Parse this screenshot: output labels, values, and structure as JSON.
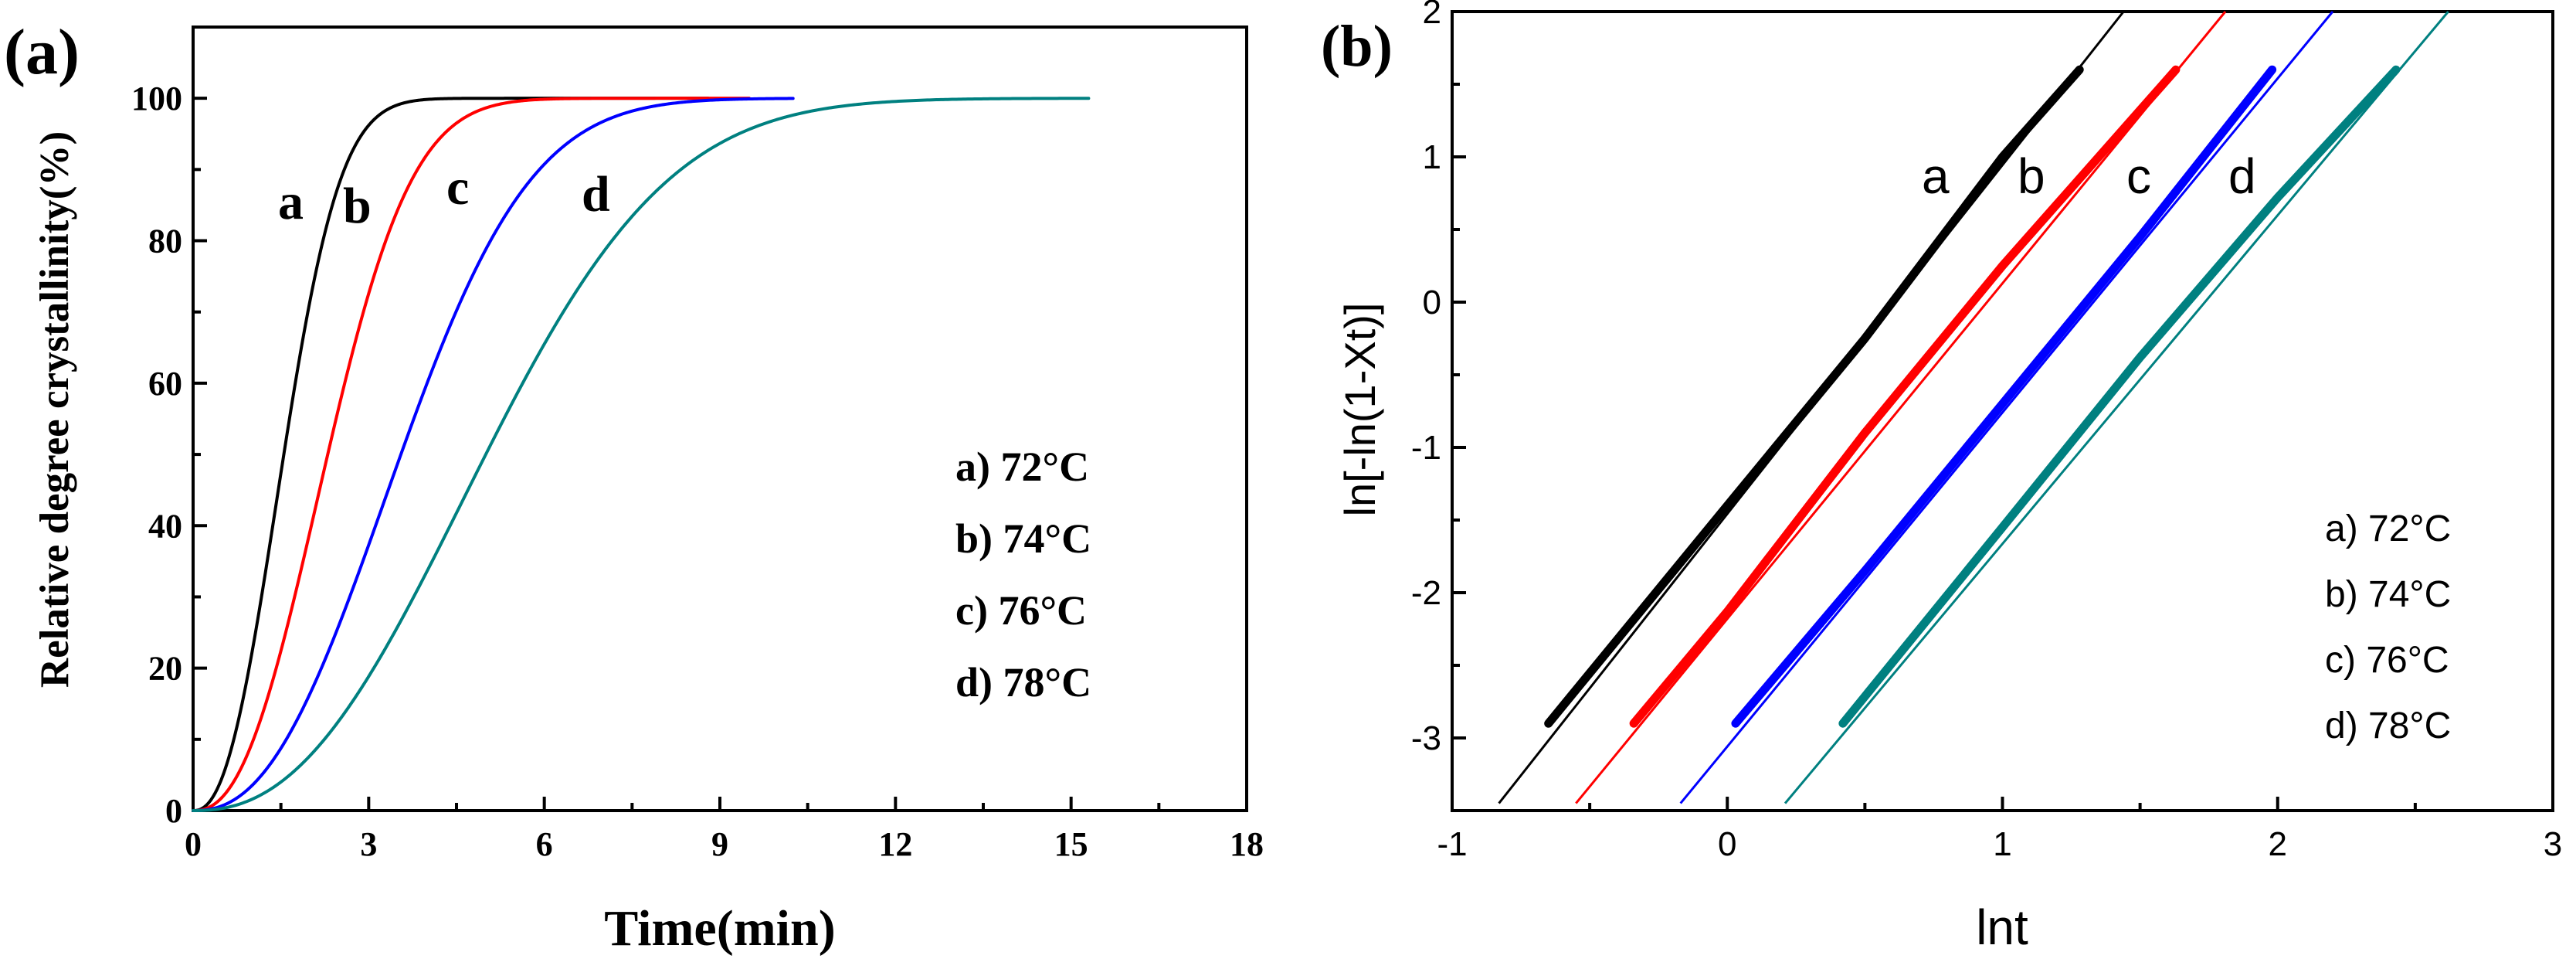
{
  "chart_data": [
    {
      "panel": "(a)",
      "type": "line",
      "title": "",
      "xlabel": "Time(min)",
      "ylabel": "Relative degree crystallinity(%)",
      "xlim": [
        0,
        18
      ],
      "ylim": [
        0,
        110
      ],
      "xticks": [
        "0",
        "3",
        "6",
        "9",
        "12",
        "15",
        "18"
      ],
      "yticks": [
        "0",
        "20",
        "40",
        "60",
        "80",
        "100"
      ],
      "series": [
        {
          "name": "a",
          "label": "a)  72°C",
          "color": "#000000",
          "model": {
            "n": 2.35,
            "half_time": 1.55,
            "t_end": 8.8
          },
          "points": [
            [
              0,
              0
            ],
            [
              0.5,
              2
            ],
            [
              1.0,
              17
            ],
            [
              1.5,
              48
            ],
            [
              2.0,
              77
            ],
            [
              2.5,
              93
            ],
            [
              3.0,
              99
            ],
            [
              3.5,
              100
            ],
            [
              8.8,
              100
            ]
          ]
        },
        {
          "name": "b",
          "label": "b)  74°C",
          "color": "#ff0000",
          "model": {
            "n": 2.35,
            "half_time": 2.3,
            "t_end": 9.5
          },
          "points": [
            [
              0,
              0
            ],
            [
              0.5,
              1
            ],
            [
              1.0,
              9
            ],
            [
              2.0,
              40
            ],
            [
              2.5,
              57
            ],
            [
              3.0,
              75
            ],
            [
              3.5,
              88
            ],
            [
              4.0,
              95
            ],
            [
              5.0,
              99
            ],
            [
              6.0,
              100
            ],
            [
              9.5,
              100
            ]
          ]
        },
        {
          "name": "c",
          "label": "c)  76°C",
          "color": "#0000ff",
          "model": {
            "n": 2.35,
            "half_time": 3.55,
            "t_end": 10.25
          },
          "points": [
            [
              0,
              0
            ],
            [
              1.0,
              3
            ],
            [
              2.0,
              20
            ],
            [
              3.0,
              38
            ],
            [
              4.0,
              60
            ],
            [
              5.0,
              78
            ],
            [
              6.0,
              90
            ],
            [
              7.0,
              96
            ],
            [
              8.0,
              99
            ],
            [
              10.25,
              100
            ]
          ]
        },
        {
          "name": "d",
          "label": "d)  78°C",
          "color": "#008080",
          "model": {
            "n": 2.35,
            "half_time": 5.0,
            "t_end": 15.3
          },
          "points": [
            [
              0,
              0
            ],
            [
              1.0,
              4
            ],
            [
              2.0,
              13
            ],
            [
              3.0,
              25
            ],
            [
              4.0,
              39
            ],
            [
              5.0,
              50
            ],
            [
              6.0,
              64
            ],
            [
              7.0,
              78
            ],
            [
              8.0,
              87
            ],
            [
              10.0,
              97
            ],
            [
              12.0,
              99.5
            ],
            [
              15.3,
              100
            ]
          ]
        }
      ],
      "curve_labels": [
        "a",
        "b",
        "c",
        "d"
      ],
      "legend": {
        "position": "bottom-right",
        "entries": [
          "a)  72°C",
          "b)  74°C",
          "c)  76°C",
          "d)  78°C"
        ]
      }
    },
    {
      "panel": "(b)",
      "type": "line",
      "title": "",
      "xlabel": "lnt",
      "ylabel": "ln[-ln(1-Xt)]",
      "xlim": [
        -1,
        3
      ],
      "ylim": [
        -3.5,
        2
      ],
      "xticks": [
        "-1",
        "0",
        "1",
        "2",
        "3"
      ],
      "yticks": [
        "-3",
        "-2",
        "-1",
        "0",
        "1",
        "2"
      ],
      "series": [
        {
          "name": "a",
          "label": "a) 72°C",
          "color": "#000000",
          "fit_line": [
            [
              -0.83,
              -3.45
            ],
            [
              1.44,
              2.0
            ]
          ],
          "data_points": [
            [
              -0.65,
              -2.9
            ],
            [
              0.0,
              -1.4
            ],
            [
              0.5,
              -0.25
            ],
            [
              1.0,
              1.0
            ],
            [
              1.28,
              1.6
            ]
          ]
        },
        {
          "name": "b",
          "label": "b) 74°C",
          "color": "#ff0000",
          "fit_line": [
            [
              -0.55,
              -3.45
            ],
            [
              1.81,
              2.0
            ]
          ],
          "data_points": [
            [
              -0.34,
              -2.9
            ],
            [
              0.0,
              -2.13
            ],
            [
              0.5,
              -0.9
            ],
            [
              1.0,
              0.25
            ],
            [
              1.63,
              1.6
            ]
          ]
        },
        {
          "name": "c",
          "label": "c) 76°C",
          "color": "#0000ff",
          "fit_line": [
            [
              -0.17,
              -3.45
            ],
            [
              2.2,
              2.0
            ]
          ],
          "data_points": [
            [
              0.03,
              -2.9
            ],
            [
              0.5,
              -1.85
            ],
            [
              1.0,
              -0.7
            ],
            [
              1.5,
              0.45
            ],
            [
              1.98,
              1.6
            ]
          ]
        },
        {
          "name": "d",
          "label": "d) 78°C",
          "color": "#008080",
          "fit_line": [
            [
              0.21,
              -3.45
            ],
            [
              2.62,
              2.0
            ]
          ],
          "data_points": [
            [
              0.42,
              -2.9
            ],
            [
              1.0,
              -1.55
            ],
            [
              1.5,
              -0.38
            ],
            [
              2.0,
              0.72
            ],
            [
              2.43,
              1.6
            ]
          ]
        }
      ],
      "curve_labels": [
        "a",
        "b",
        "c",
        "d"
      ],
      "legend": {
        "position": "bottom-right",
        "entries": [
          "a) 72°C",
          "b) 74°C",
          "c) 76°C",
          "d) 78°C"
        ]
      }
    }
  ]
}
